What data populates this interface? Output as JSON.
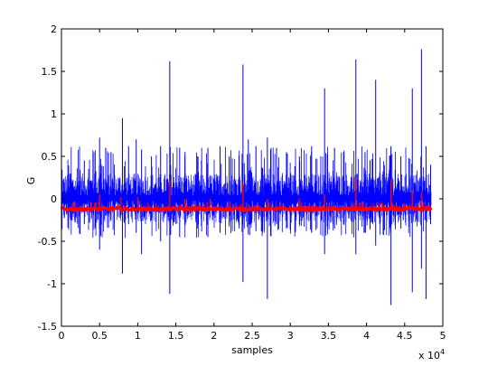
{
  "chart_data": {
    "type": "line",
    "title": "",
    "xlabel": "samples",
    "ylabel": "G",
    "x_multiplier_label": "x 10",
    "x_multiplier_exponent": "4",
    "xlim": [
      0,
      5
    ],
    "ylim": [
      -1.5,
      2
    ],
    "x_ticks": [
      "0",
      "0.5",
      "1",
      "1.5",
      "2",
      "2.5",
      "3",
      "3.5",
      "4",
      "4.5",
      "5"
    ],
    "y_ticks": [
      "-1.5",
      "-1",
      "-0.5",
      "0",
      "0.5",
      "1",
      "1.5",
      "2"
    ],
    "x_tick_values": [
      0,
      0.5,
      1,
      1.5,
      2,
      2.5,
      3,
      3.5,
      4,
      4.5,
      5
    ],
    "y_tick_values": [
      -1.5,
      -1,
      -0.5,
      0,
      0.5,
      1,
      1.5,
      2
    ],
    "grid": false,
    "series_colors": {
      "blue": "#0000ff",
      "red": "#ff0000"
    },
    "x_end": 4.85,
    "series": [
      {
        "color": "#0000ff",
        "band": {
          "low": -0.28,
          "high": 0.3
        },
        "spikes": [
          [
            0.12,
            0.3,
            -0.25
          ],
          [
            0.3,
            0.45,
            -0.3
          ],
          [
            0.5,
            0.72,
            -0.6
          ],
          [
            0.58,
            0.6,
            -0.2
          ],
          [
            0.65,
            0.55,
            -0.25
          ],
          [
            0.8,
            0.95,
            -0.88
          ],
          [
            0.88,
            0.62,
            -0.3
          ],
          [
            0.98,
            0.7,
            -0.4
          ],
          [
            1.05,
            0.58,
            -0.65
          ],
          [
            1.18,
            0.5,
            -0.25
          ],
          [
            1.3,
            0.62,
            -0.5
          ],
          [
            1.42,
            1.62,
            -1.12
          ],
          [
            1.55,
            0.6,
            -0.45
          ],
          [
            1.62,
            0.55,
            -0.3
          ],
          [
            1.78,
            0.5,
            -0.35
          ],
          [
            1.92,
            0.6,
            -0.45
          ],
          [
            2.08,
            0.62,
            -0.4
          ],
          [
            2.2,
            0.5,
            -0.3
          ],
          [
            2.38,
            1.58,
            -0.98
          ],
          [
            2.45,
            0.7,
            -0.42
          ],
          [
            2.55,
            0.62,
            -0.38
          ],
          [
            2.7,
            0.72,
            -1.18
          ],
          [
            2.82,
            0.6,
            -0.3
          ],
          [
            2.95,
            0.55,
            -0.35
          ],
          [
            3.12,
            0.5,
            -0.3
          ],
          [
            3.28,
            0.62,
            -0.4
          ],
          [
            3.45,
            1.3,
            -0.65
          ],
          [
            3.58,
            0.6,
            -0.35
          ],
          [
            3.7,
            0.55,
            -0.3
          ],
          [
            3.86,
            1.64,
            -0.65
          ],
          [
            3.98,
            0.55,
            -0.4
          ],
          [
            4.12,
            1.4,
            -0.55
          ],
          [
            4.32,
            0.62,
            -1.25
          ],
          [
            4.45,
            0.5,
            -0.35
          ],
          [
            4.6,
            1.3,
            -1.1
          ],
          [
            4.72,
            1.76,
            -0.82
          ],
          [
            4.78,
            0.62,
            -1.18
          ],
          [
            4.84,
            0.4,
            -0.3
          ]
        ]
      },
      {
        "color": "#ff0000",
        "baseline": -0.12,
        "spikes": [
          [
            0.5,
            0.05
          ],
          [
            0.78,
            0.02
          ],
          [
            1.0,
            0.02
          ],
          [
            1.42,
            0.22
          ],
          [
            1.62,
            0.0
          ],
          [
            1.95,
            0.0
          ],
          [
            2.38,
            0.2
          ],
          [
            2.7,
            0.0
          ],
          [
            3.12,
            0.0
          ],
          [
            3.45,
            0.05
          ],
          [
            3.86,
            0.25
          ],
          [
            4.32,
            0.22
          ],
          [
            4.6,
            0.1
          ],
          [
            4.72,
            0.08
          ]
        ]
      }
    ]
  }
}
